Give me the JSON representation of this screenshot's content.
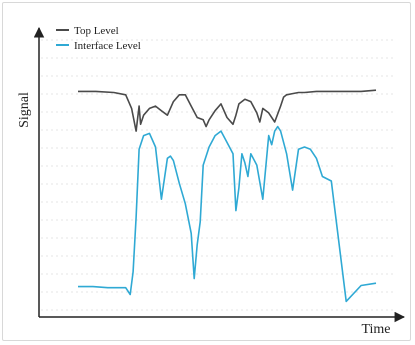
{
  "chart_data": {
    "type": "line",
    "xlabel": "Time",
    "ylabel": "Signal",
    "xlim": [
      0,
      100
    ],
    "ylim": [
      0,
      100
    ],
    "grid": true,
    "legend_placement": "top-left",
    "series": [
      {
        "name": "Top Level",
        "color": "#4a4a4a",
        "x": [
          0,
          6,
          12,
          16,
          18,
          19.5,
          20.5,
          21,
          22,
          24,
          26,
          28,
          30,
          32,
          34,
          36,
          38,
          40,
          42,
          43,
          44,
          46,
          48,
          50,
          52,
          53,
          54,
          56,
          58,
          60,
          61,
          62,
          64,
          66,
          68,
          69,
          70,
          72,
          74,
          76,
          80,
          85,
          90,
          95,
          100
        ],
        "y": [
          87.5,
          87.5,
          87,
          86,
          80,
          70,
          81,
          73,
          77,
          80,
          81,
          79,
          77,
          83,
          86,
          86,
          81,
          76,
          75,
          72,
          75,
          79,
          82,
          76,
          73,
          77,
          82,
          84,
          83,
          78,
          74,
          80,
          78,
          74,
          81,
          85,
          86,
          86.5,
          87,
          87,
          87.5,
          87.5,
          87.5,
          87.5,
          88
        ]
      },
      {
        "name": "Interface Level",
        "color": "#2fa9d4",
        "x": [
          0,
          5,
          10,
          16,
          17.5,
          18.5,
          19.5,
          20.5,
          22,
          24,
          26,
          28,
          30,
          31,
          32,
          34,
          36,
          38,
          39,
          40,
          41,
          42,
          44,
          46,
          48,
          50,
          52,
          53,
          54,
          55,
          56,
          57,
          58,
          60,
          62,
          64,
          65,
          66,
          67,
          68,
          70,
          72,
          74,
          76,
          78,
          80,
          82,
          85,
          90,
          95,
          100
        ],
        "y": [
          1.5,
          1.5,
          1,
          1,
          -2,
          8,
          32,
          62,
          68,
          69,
          63,
          40,
          58,
          59,
          57,
          47,
          38,
          25,
          5,
          20,
          30,
          55,
          63,
          68,
          70,
          65,
          60,
          35,
          45,
          60,
          56,
          50,
          60,
          55,
          40,
          68,
          64,
          70,
          72,
          70,
          60,
          44,
          62,
          63,
          62,
          58,
          50,
          48,
          -5,
          2,
          3
        ]
      }
    ]
  }
}
